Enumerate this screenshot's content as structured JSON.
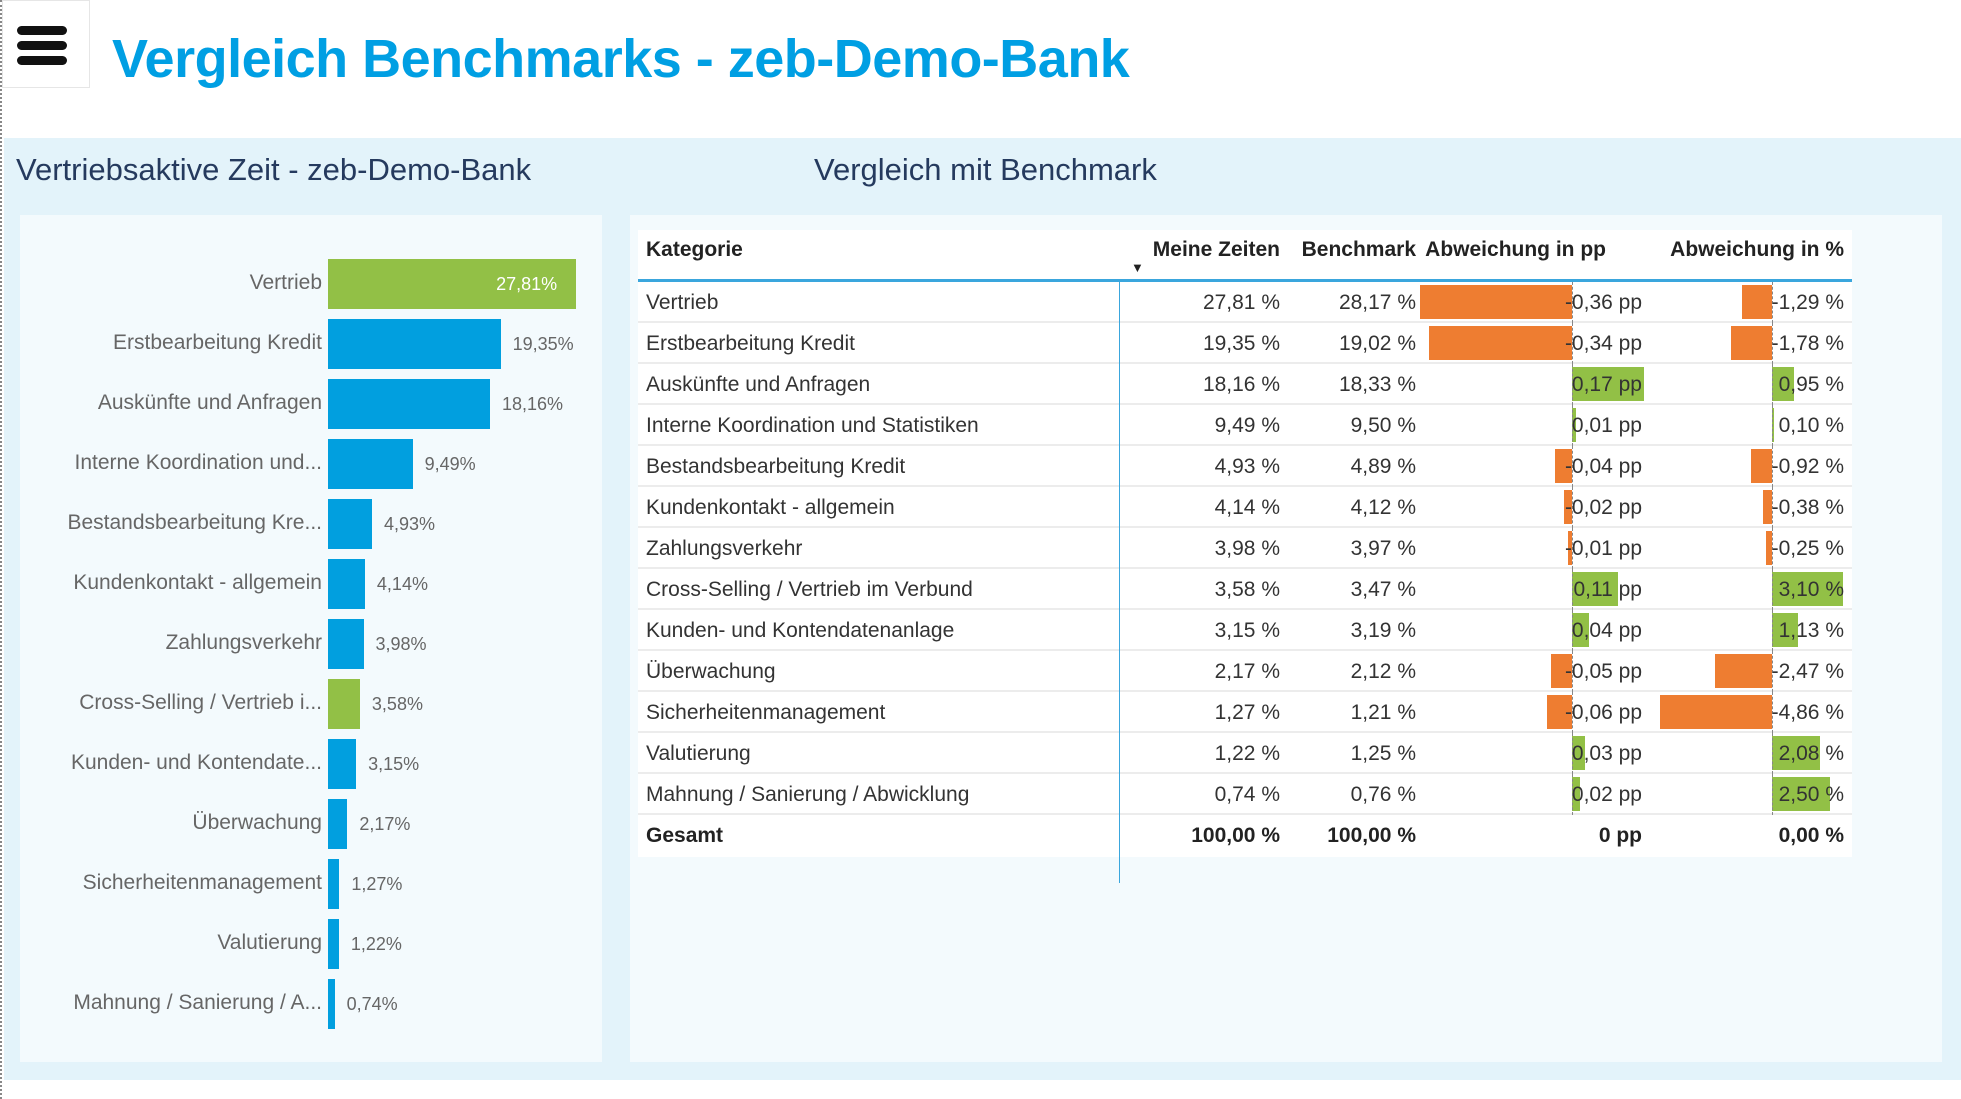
{
  "header": {
    "title": "Vergleich Benchmarks - zeb-Demo-Bank",
    "menu_icon": "hamburger-icon"
  },
  "left": {
    "heading": "Vertriebsaktive Zeit - zeb-Demo-Bank"
  },
  "right": {
    "heading": "Vergleich mit Benchmark"
  },
  "colors": {
    "blue": "#019fdf",
    "green": "#92c046",
    "orange": "#ee7d31",
    "title": "#009fe3"
  },
  "chart_data": {
    "type": "bar",
    "orientation": "horizontal",
    "title": "Vertriebsaktive Zeit - zeb-Demo-Bank",
    "categories": [
      "Vertrieb",
      "Erstbearbeitung Kredit",
      "Auskünfte und Anfragen",
      "Interne Koordination und...",
      "Bestandsbearbeitung Kre...",
      "Kundenkontakt - allgemein",
      "Zahlungsverkehr",
      "Cross-Selling / Vertrieb i...",
      "Kunden- und Kontendate...",
      "Überwachung",
      "Sicherheitenmanagement",
      "Valutierung",
      "Mahnung / Sanierung / A..."
    ],
    "values": [
      27.81,
      19.35,
      18.16,
      9.49,
      4.93,
      4.14,
      3.98,
      3.58,
      3.15,
      2.17,
      1.27,
      1.22,
      0.74
    ],
    "labels": [
      "27,81%",
      "19,35%",
      "18,16%",
      "9,49%",
      "4,93%",
      "4,14%",
      "3,98%",
      "3,58%",
      "3,15%",
      "2,17%",
      "1,27%",
      "1,22%",
      "0,74%"
    ],
    "bar_colors": [
      "green",
      "blue",
      "blue",
      "blue",
      "blue",
      "blue",
      "blue",
      "green",
      "blue",
      "blue",
      "blue",
      "blue",
      "blue"
    ]
  },
  "table": {
    "headers": {
      "kategorie": "Kategorie",
      "meine": "Meine Zeiten",
      "benchmark": "Benchmark",
      "pp": "Abweichung in pp",
      "pct": "Abweichung in %"
    },
    "sort_icon": "sort-descending-icon",
    "rows": [
      {
        "k": "Vertrieb",
        "m": "27,81 %",
        "b": "28,17 %",
        "pp": "-0,36 pp",
        "ppv": -0.36,
        "pc": "-1,29 %",
        "pcv": -1.29
      },
      {
        "k": "Erstbearbeitung Kredit",
        "m": "19,35 %",
        "b": "19,02 %",
        "pp": "-0,34 pp",
        "ppv": -0.34,
        "pc": "-1,78 %",
        "pcv": -1.78
      },
      {
        "k": "Auskünfte und Anfragen",
        "m": "18,16 %",
        "b": "18,33 %",
        "pp": "0,17 pp",
        "ppv": 0.17,
        "pc": "0,95 %",
        "pcv": 0.95
      },
      {
        "k": "Interne Koordination und Statistiken",
        "m": "9,49 %",
        "b": "9,50 %",
        "pp": "0,01 pp",
        "ppv": 0.01,
        "pc": "0,10 %",
        "pcv": 0.1
      },
      {
        "k": "Bestandsbearbeitung Kredit",
        "m": "4,93 %",
        "b": "4,89 %",
        "pp": "-0,04 pp",
        "ppv": -0.04,
        "pc": "-0,92 %",
        "pcv": -0.92
      },
      {
        "k": "Kundenkontakt - allgemein",
        "m": "4,14 %",
        "b": "4,12 %",
        "pp": "-0,02 pp",
        "ppv": -0.02,
        "pc": "-0,38 %",
        "pcv": -0.38
      },
      {
        "k": "Zahlungsverkehr",
        "m": "3,98 %",
        "b": "3,97 %",
        "pp": "-0,01 pp",
        "ppv": -0.01,
        "pc": "-0,25 %",
        "pcv": -0.25
      },
      {
        "k": "Cross-Selling / Vertrieb im Verbund",
        "m": "3,58 %",
        "b": "3,47 %",
        "pp": "0,11 pp",
        "ppv": 0.11,
        "pc": "3,10 %",
        "pcv": 3.1
      },
      {
        "k": "Kunden- und Kontendatenanlage",
        "m": "3,15 %",
        "b": "3,19 %",
        "pp": "0,04 pp",
        "ppv": 0.04,
        "pc": "1,13 %",
        "pcv": 1.13
      },
      {
        "k": "Überwachung",
        "m": "2,17 %",
        "b": "2,12 %",
        "pp": "-0,05 pp",
        "ppv": -0.05,
        "pc": "-2,47 %",
        "pcv": -2.47
      },
      {
        "k": "Sicherheitenmanagement",
        "m": "1,27 %",
        "b": "1,21 %",
        "pp": "-0,06 pp",
        "ppv": -0.06,
        "pc": "-4,86 %",
        "pcv": -4.86
      },
      {
        "k": "Valutierung",
        "m": "1,22 %",
        "b": "1,25 %",
        "pp": "0,03 pp",
        "ppv": 0.03,
        "pc": "2,08 %",
        "pcv": 2.08
      },
      {
        "k": "Mahnung / Sanierung / Abwicklung",
        "m": "0,74 %",
        "b": "0,76 %",
        "pp": "0,02 pp",
        "ppv": 0.02,
        "pc": "2,50 %",
        "pcv": 2.5
      }
    ],
    "total": {
      "k": "Gesamt",
      "m": "100,00 %",
      "b": "100,00 %",
      "pp": "0 pp",
      "pc": "0,00 %"
    }
  }
}
